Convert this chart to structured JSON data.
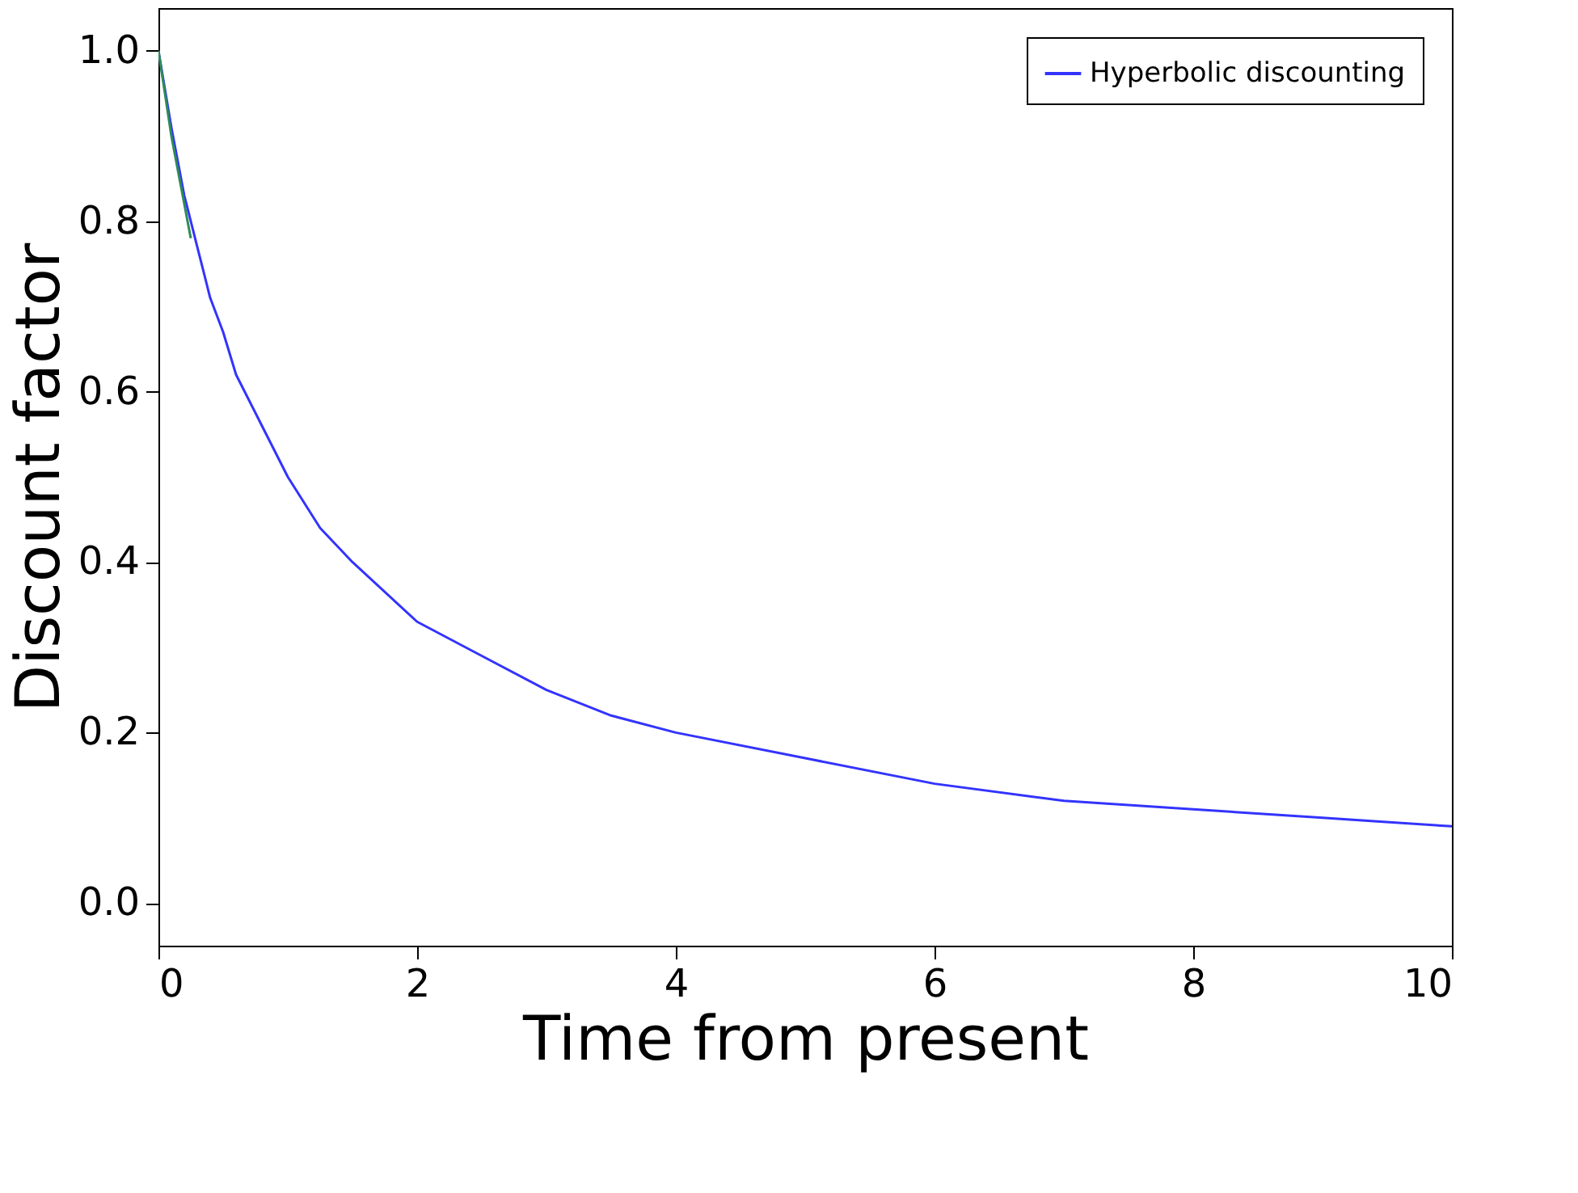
{
  "chart_data": {
    "type": "line",
    "xlabel": "Time from present",
    "ylabel": "Discount factor",
    "xlim": [
      0,
      10
    ],
    "xticks": [
      0,
      2,
      4,
      6,
      8,
      10
    ],
    "ylim": [
      -0.05,
      1.05
    ],
    "yticks": [
      {
        "value": 0,
        "label": "0.0"
      },
      0.2,
      0.4,
      0.6,
      0.8,
      {
        "value": 1,
        "label": "1.0"
      }
    ],
    "grid": false,
    "legend": "top right",
    "line_style": "solid",
    "marker": "none",
    "series": [
      {
        "name": "Hyperbolic discounting",
        "color": "#3333ff",
        "x": [
          0,
          0.1,
          0.2,
          0.3,
          0.4,
          0.5,
          0.6,
          0.8,
          1,
          1.25,
          1.5,
          2,
          2.5,
          3,
          3.5,
          4,
          5,
          6,
          7,
          8,
          9,
          10
        ],
        "values": [
          1.0,
          0.91,
          0.83,
          0.77,
          0.71,
          0.67,
          0.62,
          0.56,
          0.5,
          0.44,
          0.4,
          0.33,
          0.29,
          0.25,
          0.22,
          0.2,
          0.17,
          0.14,
          0.12,
          0.11,
          0.1,
          0.09
        ]
      },
      {
        "color": "#2e8b57",
        "x": [
          0,
          0.05,
          0.1,
          0.15,
          0.2,
          0.25
        ],
        "values": [
          1.0,
          0.95,
          0.9,
          0.86,
          0.82,
          0.78
        ]
      }
    ]
  }
}
